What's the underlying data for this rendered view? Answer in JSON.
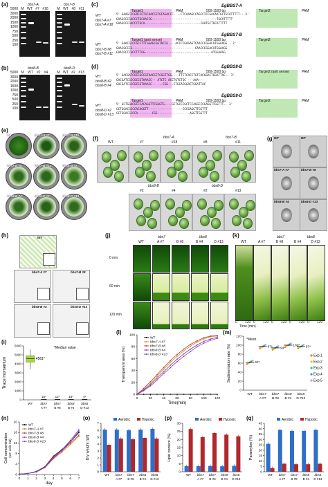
{
  "panels": {
    "a": {
      "label": "(a)",
      "gel1_title": "bbs7-A",
      "gel2_title": "bbs7-B",
      "lanes1": [
        "M",
        "WT",
        "#7",
        "#18"
      ],
      "lanes2": [
        "M",
        "WT",
        "#8",
        "#11"
      ],
      "sizes": [
        "5000",
        "3000",
        "2000",
        "1500",
        "1000",
        "750",
        "500",
        "250",
        "100"
      ]
    },
    "b": {
      "label": "(b)",
      "gel1_title": "bbs8-B",
      "gel2_title": "bbs8-D",
      "lanes1": [
        "M",
        "WT",
        "#2",
        "#4"
      ],
      "lanes2": [
        "M",
        "WT",
        "#2",
        "#13"
      ],
      "sizes": [
        "5000",
        "3000",
        "2000",
        "1500",
        "1000",
        "750",
        "500",
        "250",
        "100"
      ]
    },
    "c": {
      "label": "(c)",
      "block1": {
        "title": "EgBBS7-A",
        "target1": "Target1",
        "pam1": "PAM",
        "gap": "500-1500 bp",
        "target2": "Target2",
        "pam2": "PAM",
        "rows": [
          {
            "name": "WT",
            "seq": "5' GAAGCCCGACCCTGCAACCGTGCAGACCC....CTCAAAGCCAGCCTCCGACAATGCTGCATTTTT.. 3'"
          },
          {
            "name": "bbs7-A #7",
            "seq": "GAAGCCCGACCCTGCAACCG------------------------------------TGCATTTTT"
          },
          {
            "name": "bbs7-A #18",
            "seq": "GAAGCCCGACCCTGCA-------------------------------CAATGCTGCATTTTT"
          }
        ]
      },
      "block2": {
        "title": "EgBBS7-B",
        "target1": "Target1 (anti sense)",
        "pam1": "PAM",
        "gap": "500-1500 bp",
        "target2": "Target2",
        "pam2": "PAM",
        "rows": [
          {
            "name": "WT",
            "seq": "5' GAACGCCCGCCTTTGGAGCGGTACCG....ACCCCGAGAGTCAACCCGGACATGGAAGG.. 3'"
          },
          {
            "name": "bbs7-B #8",
            "seq": "GAACGCCCG-----------------------------------CAACCCGGACATGGAAGG"
          },
          {
            "name": "bbs7-B #11",
            "seq": "GAACGCCCGCCTTTGG-------------------------------------ATGGAAGG"
          }
        ]
      },
      "block3": {
        "title": "EgBBS8-B",
        "target1": "Target1",
        "pam1": "PAM",
        "gap": "500-1500 bp",
        "target2": "Target2 (anti sense)",
        "pam2": "PAM",
        "rows": [
          {
            "name": "WT",
            "seq": "5' GACGATCGCCGCCGTAACCCTCGGTTGG....TTCTCACCTGTCACGGACTGGATTAC.. 3'"
          },
          {
            "name": "bbs8-B #2",
            "seq": "GACGATCGCCGCCGTAAACC-- ATCTC ACCTGTCTGC ---AAA---"
          },
          {
            "name": "bbs8-B #4",
            "seq": "GACGATCGCCGCCGTAAACC-- ...CGG ..CTGCACGGACTGGATTAC"
          }
        ]
      },
      "block4": {
        "title": "EgBBS8-D",
        "target1": "Target1",
        "pam1": "PAM",
        "gap": "500-1500 bp",
        "target2": "Target2",
        "pam2": "PAM",
        "rows": [
          {
            "name": "WT",
            "seq": "5' GCTGGACGCCCACAGGTTCGGGTG....GCTGCCCGCTCCAGGCCCGAGGTTGGTTT.. 3'"
          },
          {
            "name": "bbs8-D #2",
            "seq": "GCTGGACGCCCACAGGTT-------------------CCCGAGGTTGGTTT"
          },
          {
            "name": "bbs8-D #13",
            "seq": "GCTGGACGCCCA--------CGG------------------AGGTTGGTTT"
          }
        ]
      }
    },
    "e": {
      "label": "(e)",
      "dishes": [
        "WT",
        "bbs7-A #7",
        "bbs7-A #18",
        "bbs7-B #8",
        "bbs7-B #11",
        "bbs8-B #2",
        "bbs8-B #4",
        "bbs8-D #2",
        "bbs8-D #13"
      ]
    },
    "f": {
      "label": "(f)",
      "row1_groups": [
        "bbs7-A",
        "bbs7-B"
      ],
      "row1": [
        "WT",
        "#7",
        "#18",
        "#8",
        "#11"
      ],
      "row2_groups": [
        "bbs8-B",
        "bbs8-D"
      ],
      "row2": [
        "#2",
        "#4",
        "#2",
        "#13"
      ]
    },
    "g": {
      "label": "(g)",
      "images": [
        "WT",
        "WT",
        "bbs7-A #7",
        "bbs7-B #8",
        "bbs8-B #4",
        "bbs8-D #13"
      ]
    },
    "h": {
      "label": "(h)",
      "images": [
        "WT",
        "bbs7-A #7",
        "bbs7-B #8",
        "bbs8-B #4",
        "bbs8-D #13"
      ]
    },
    "i": {
      "label": "(i)",
      "ylabel": "Trace momentum",
      "note": "*Median value",
      "yticks": [
        "0",
        "1000",
        "2000",
        "3000",
        "4000",
        "5000",
        "6000"
      ],
      "ylim": [
        0,
        6000
      ],
      "categories": [
        {
          "g": "WT",
          "s": ""
        },
        {
          "g": "bbs7",
          "s": "A #7"
        },
        {
          "g": "bbs7",
          "s": "B #8"
        },
        {
          "g": "bbs8",
          "s": "B #4"
        },
        {
          "g": "bbs8",
          "s": "D #13"
        }
      ],
      "medians": [
        4561,
        16,
        12,
        16,
        4
      ],
      "median_labels": [
        "4561*",
        "16*",
        "12*",
        "16*",
        "4*"
      ]
    },
    "j": {
      "label": "(j)",
      "groups": [
        "bbs7",
        "bbs8"
      ],
      "cols": [
        "WT",
        "A #7",
        "B #8",
        "B #4",
        "D #13"
      ],
      "rows": [
        "0 min",
        "60 min",
        "120 min"
      ]
    },
    "k": {
      "label": "(k)",
      "groups": [
        "bbs7",
        "bbs8"
      ],
      "cols": [
        "WT",
        "A #7",
        "B #8",
        "B #4",
        "D #13"
      ],
      "xaxis": "Time (min)",
      "xticks": [
        "0",
        "120"
      ]
    },
    "l": {
      "label": "(l)",
      "xlabel": "Time(min)",
      "ylabel": "Transparent area (%)",
      "xticks": [
        "0",
        "20",
        "40",
        "60",
        "80",
        "100",
        "120"
      ],
      "yticks": [
        "0",
        "20",
        "40",
        "60",
        "80",
        "100"
      ],
      "legend": [
        "WT",
        "bbs7-A #7",
        "bbs7-B #8",
        "bbs8-B #4",
        "bbs8-D #13"
      ],
      "colors": [
        "#000000",
        "#e07b1a",
        "#c0392b",
        "#8e44ad",
        "#6c3fb0"
      ],
      "x": [
        0,
        10,
        20,
        30,
        40,
        50,
        60,
        70,
        80,
        90,
        100,
        110,
        120
      ],
      "series": [
        [
          0,
          0,
          0,
          0,
          0,
          0,
          0,
          0,
          0,
          0,
          0,
          0,
          0
        ],
        [
          0,
          8,
          18,
          30,
          42,
          54,
          64,
          73,
          81,
          88,
          93,
          97,
          98
        ],
        [
          0,
          10,
          21,
          33,
          45,
          57,
          67,
          76,
          84,
          90,
          95,
          98,
          99
        ],
        [
          0,
          6,
          14,
          24,
          35,
          45,
          55,
          64,
          72,
          80,
          86,
          91,
          94
        ],
        [
          0,
          7,
          16,
          27,
          38,
          49,
          59,
          68,
          76,
          83,
          89,
          93,
          96
        ]
      ]
    },
    "m": {
      "label": "(m)",
      "ylabel": "Sedimentation rate (%)",
      "note": "*Mean",
      "yticks": [
        "0",
        "20",
        "40",
        "60",
        "80",
        "100",
        "120"
      ],
      "categories": [
        {
          "g": "WT",
          "s": ""
        },
        {
          "g": "bbs7",
          "s": "A #7"
        },
        {
          "g": "bbs7",
          "s": "B #8"
        },
        {
          "g": "bbs8",
          "s": "B #4"
        },
        {
          "g": "bbs8",
          "s": "D #13"
        }
      ],
      "means": [
        62,
        97,
        94,
        100,
        97
      ],
      "mean_labels": [
        "62*",
        "97*",
        "94*",
        "100*",
        "97*"
      ],
      "legend": [
        "Exp.1",
        "Exp.2",
        "Exp.3",
        "Exp.4",
        "Exp.5"
      ],
      "colors": [
        "#e67e22",
        "#f1c40f",
        "#2ecc71",
        "#3498db",
        "#c39bd3"
      ]
    },
    "n": {
      "label": "(n)",
      "ylabel": "Cell concentration",
      "yunit": "(10⁶ cells /ml)",
      "xlabel": "day",
      "xticks": [
        "0",
        "1",
        "2",
        "3",
        "4",
        "5",
        "6",
        "7"
      ],
      "yticks": [
        "0",
        "4",
        "8",
        "12",
        "16",
        "20"
      ],
      "legend": [
        "WT",
        "bbs7-A #7",
        "bbs7-B #8",
        "bbs8-B #4",
        "bbs8-D #13"
      ],
      "colors": [
        "#000000",
        "#e07b1a",
        "#c0392b",
        "#8e44ad",
        "#6c3fb0"
      ],
      "x": [
        0,
        1,
        2,
        3,
        4,
        5,
        6,
        7
      ],
      "series": [
        [
          0.2,
          0.4,
          1.2,
          3.0,
          7.0,
          9.5,
          12.5,
          16.0
        ],
        [
          0.2,
          0.4,
          1.0,
          2.6,
          6.0,
          8.5,
          11.5,
          14.5
        ],
        [
          0.2,
          0.4,
          1.1,
          2.8,
          6.5,
          9.0,
          12.0,
          15.0
        ],
        [
          0.2,
          0.4,
          1.0,
          2.7,
          6.2,
          9.0,
          12.5,
          16.5
        ],
        [
          0.2,
          0.4,
          1.1,
          2.9,
          6.8,
          9.3,
          13.0,
          17.0
        ]
      ]
    },
    "o": {
      "label": "(o)",
      "ylabel": "Dry weight (g/l)",
      "yticks": [
        "0",
        "1",
        "2",
        "3",
        "4",
        "5",
        "6",
        "7"
      ],
      "ymax": 7,
      "legend": [
        "Aerobic",
        "Hypoxic"
      ],
      "colors": [
        "#2f6fc9",
        "#b0282b"
      ],
      "categories": [
        "WT",
        "bbs7 A #7",
        "bbs7 B #8",
        "bbs8 B #4",
        "bbs8 D #13"
      ],
      "aerobic": [
        6.1,
        6.1,
        6.0,
        6.1,
        6.2
      ],
      "hypoxic": [
        3.9,
        4.8,
        4.7,
        4.9,
        4.8
      ]
    },
    "p": {
      "label": "(p)",
      "ylabel": "Lipid content (%)",
      "yticks": [
        "0",
        "5",
        "10",
        "15",
        "20",
        "25",
        "30"
      ],
      "ymax": 30,
      "legend": [
        "Aerobic",
        "Hypoxic"
      ],
      "colors": [
        "#2f6fc9",
        "#b0282b"
      ],
      "categories": [
        "WT",
        "bbs7 A #7",
        "bbs7 B #8",
        "bbs8 B #4",
        "bbs8 D #13"
      ],
      "aerobic": [
        3.5,
        3.5,
        3.6,
        3.4,
        3.7
      ],
      "hypoxic": [
        26.5,
        21.5,
        24.0,
        23.0,
        22.0
      ]
    },
    "q": {
      "label": "(q)",
      "ylabel": "Paramylon (%)",
      "yticks": [
        "0",
        "5",
        "10",
        "15",
        "20",
        "25",
        "30",
        "35",
        "40",
        "45"
      ],
      "ymax": 45,
      "legend": [
        "Aerobic",
        "Hypoxic"
      ],
      "colors": [
        "#2f6fc9",
        "#b0282b"
      ],
      "categories": [
        "WT",
        "bbs7 A #7",
        "bbs7 B #8",
        "bbs8 B #4",
        "bbs8 D #13"
      ],
      "aerobic": [
        26,
        39,
        38,
        38,
        39
      ],
      "hypoxic": [
        3.5,
        7.5,
        7.0,
        7.0,
        7.5
      ]
    }
  }
}
